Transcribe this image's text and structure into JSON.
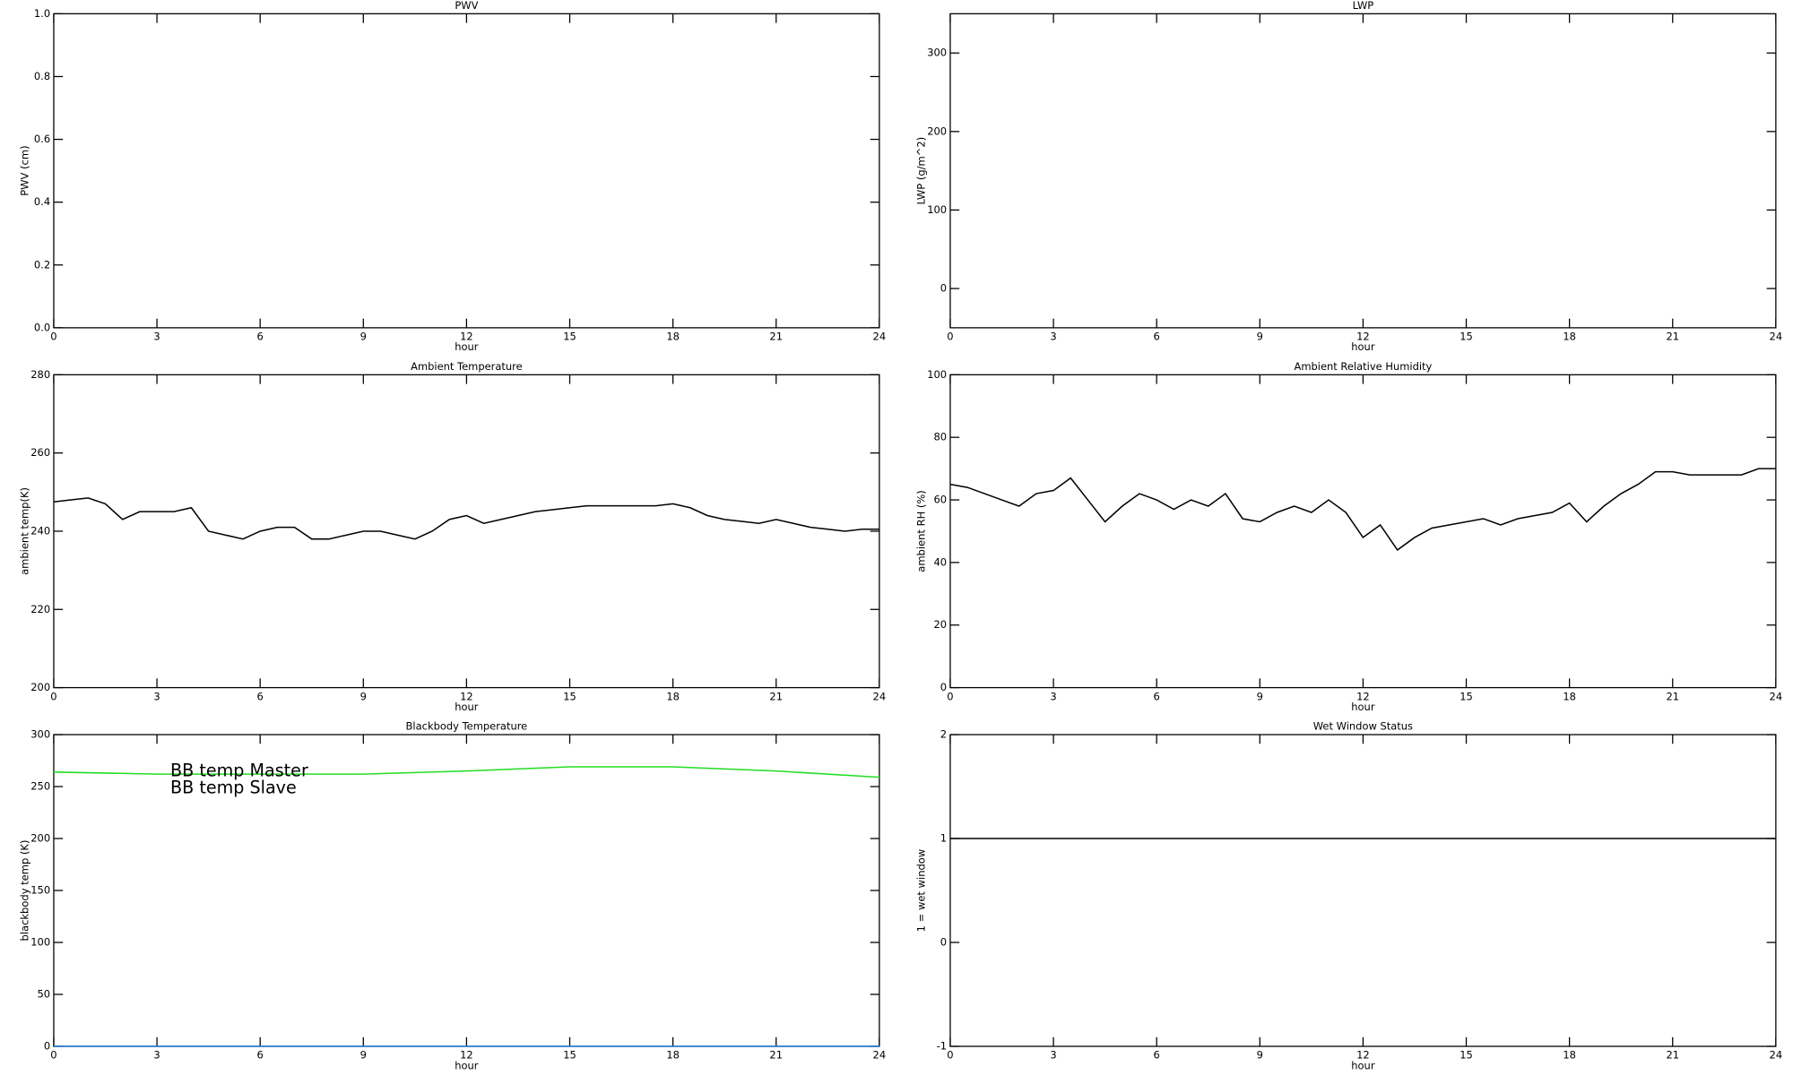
{
  "chart_data": [
    {
      "type": "line",
      "title": "PWV",
      "x_label": "hour",
      "y_label": "PWV (cm)",
      "xlim": [
        0,
        24
      ],
      "xticks": [
        0,
        3,
        6,
        9,
        12,
        15,
        18,
        21,
        24
      ],
      "ylim": [
        0,
        1
      ],
      "yticks": [
        {
          "value": 0,
          "label": "0.0"
        },
        {
          "value": 0.2,
          "label": "0.2"
        },
        {
          "value": 0.4,
          "label": "0.4"
        },
        {
          "value": 0.6,
          "label": "0.6"
        },
        {
          "value": 0.8,
          "label": "0.8"
        },
        {
          "value": 1,
          "label": "1.0"
        }
      ],
      "series": []
    },
    {
      "type": "line",
      "title": "LWP",
      "x_label": "hour",
      "y_label": "LWP (g/m^2)",
      "xlim": [
        0,
        24
      ],
      "xticks": [
        0,
        3,
        6,
        9,
        12,
        15,
        18,
        21,
        24
      ],
      "ylim": [
        -50,
        350
      ],
      "yticks": [
        0,
        100,
        200,
        300
      ],
      "series": []
    },
    {
      "type": "line",
      "title": "Ambient Temperature",
      "x_label": "hour",
      "y_label": "ambient temp(K)",
      "xlim": [
        0,
        24
      ],
      "xticks": [
        0,
        3,
        6,
        9,
        12,
        15,
        18,
        21,
        24
      ],
      "ylim": [
        200,
        280
      ],
      "yticks": [
        200,
        220,
        240,
        260,
        280
      ],
      "x": [
        0,
        0.5,
        1,
        1.5,
        2,
        2.5,
        3,
        3.5,
        4,
        4.5,
        5,
        5.5,
        6,
        6.5,
        7,
        7.5,
        8,
        8.5,
        9,
        9.5,
        10,
        10.5,
        11,
        11.5,
        12,
        12.5,
        13,
        13.5,
        14,
        14.5,
        15,
        15.5,
        16,
        16.5,
        17,
        17.5,
        18,
        18.5,
        19,
        19.5,
        20,
        20.5,
        21,
        21.5,
        22,
        22.5,
        23,
        23.5,
        24
      ],
      "series": [
        {
          "color": "#000000",
          "values": [
            247.5,
            248,
            248.5,
            247,
            243,
            245,
            245,
            245,
            246,
            240,
            239,
            238,
            240,
            241,
            241,
            238,
            238,
            239,
            240,
            240,
            239,
            238,
            240,
            243,
            244,
            242,
            243,
            244,
            245,
            245.5,
            246,
            246.5,
            246.5,
            246.5,
            246.5,
            246.5,
            247,
            246,
            244,
            243,
            242.5,
            242,
            243,
            242,
            241,
            240.5,
            240,
            240.5,
            240.5
          ]
        }
      ]
    },
    {
      "type": "line",
      "title": "Ambient Relative Humidity",
      "x_label": "hour",
      "y_label": "ambient RH (%)",
      "xlim": [
        0,
        24
      ],
      "xticks": [
        0,
        3,
        6,
        9,
        12,
        15,
        18,
        21,
        24
      ],
      "ylim": [
        0,
        100
      ],
      "yticks": [
        0,
        20,
        40,
        60,
        80,
        100
      ],
      "x": [
        0,
        0.5,
        1,
        1.5,
        2,
        2.5,
        3,
        3.5,
        4,
        4.5,
        5,
        5.5,
        6,
        6.5,
        7,
        7.5,
        8,
        8.5,
        9,
        9.5,
        10,
        10.5,
        11,
        11.5,
        12,
        12.5,
        13,
        13.5,
        14,
        14.5,
        15,
        15.5,
        16,
        16.5,
        17,
        17.5,
        18,
        18.5,
        19,
        19.5,
        20,
        20.5,
        21,
        21.5,
        22,
        22.5,
        23,
        23.5,
        24
      ],
      "series": [
        {
          "color": "#000000",
          "values": [
            65,
            64,
            62,
            60,
            58,
            62,
            63,
            67,
            60,
            53,
            58,
            62,
            60,
            57,
            60,
            58,
            62,
            54,
            53,
            56,
            58,
            56,
            60,
            56,
            48,
            52,
            44,
            48,
            51,
            52,
            53,
            54,
            52,
            54,
            55,
            56,
            59,
            53,
            58,
            62,
            65,
            69,
            69,
            68,
            68,
            68,
            68,
            70,
            70
          ]
        }
      ]
    },
    {
      "type": "line",
      "title": "Blackbody Temperature",
      "x_label": "hour",
      "y_label": "blackbody temp (K)",
      "xlim": [
        0,
        24
      ],
      "xticks": [
        0,
        3,
        6,
        9,
        12,
        15,
        18,
        21,
        24
      ],
      "ylim": [
        0,
        300
      ],
      "yticks": [
        0,
        50,
        100,
        150,
        200,
        250,
        300
      ],
      "x": [
        0,
        3,
        6,
        9,
        12,
        15,
        18,
        21,
        24
      ],
      "series": [
        {
          "name": "BB temp Master",
          "color": "#1e7fe0",
          "values": [
            0,
            0,
            0,
            0,
            0,
            0,
            0,
            0,
            0
          ]
        },
        {
          "name": "BB temp Slave",
          "color": "#22dd22",
          "values": [
            264,
            262,
            262,
            262,
            265,
            269,
            269,
            265,
            259
          ]
        }
      ]
    },
    {
      "type": "line",
      "title": "Wet Window Status",
      "x_label": "hour",
      "y_label": "1 = wet window",
      "xlim": [
        0,
        24
      ],
      "xticks": [
        0,
        3,
        6,
        9,
        12,
        15,
        18,
        21,
        24
      ],
      "ylim": [
        -1,
        2
      ],
      "yticks": [
        -1,
        0,
        1,
        2
      ],
      "x": [
        0,
        24
      ],
      "series": [
        {
          "color": "#000000",
          "values": [
            1,
            1
          ]
        }
      ]
    }
  ]
}
